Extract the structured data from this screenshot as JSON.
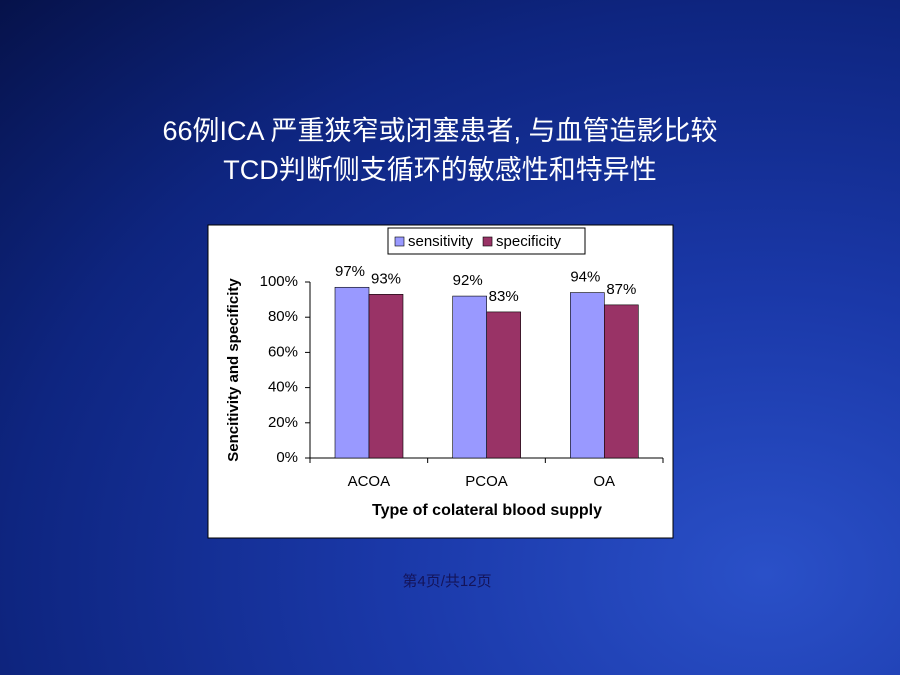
{
  "title": "66例ICA 严重狭窄或闭塞患者, 与血管造影比较TCD判断侧支循环的敏感性和特异性",
  "footer": "第4页/共12页",
  "chart_data": {
    "type": "bar",
    "categories": [
      "ACOA",
      "PCOA",
      "OA"
    ],
    "series": [
      {
        "name": "sensitivity",
        "color": "#9999ff",
        "values": [
          97,
          92,
          94
        ],
        "value_labels": [
          "97%",
          "92%",
          "94%"
        ]
      },
      {
        "name": "specificity",
        "color": "#993366",
        "values": [
          93,
          83,
          87
        ],
        "value_labels": [
          "93%",
          "83%",
          "87%"
        ]
      }
    ],
    "ylim": [
      0,
      100
    ],
    "yticks": [
      {
        "value": 0,
        "label": "0%"
      },
      {
        "value": 20,
        "label": "20%"
      },
      {
        "value": 40,
        "label": "40%"
      },
      {
        "value": 60,
        "label": "60%"
      },
      {
        "value": 80,
        "label": "80%"
      },
      {
        "value": 100,
        "label": "100%"
      }
    ],
    "y_label": "Sencitivity and specificity",
    "x_label": "Type of colateral blood supply",
    "legend": "top"
  }
}
